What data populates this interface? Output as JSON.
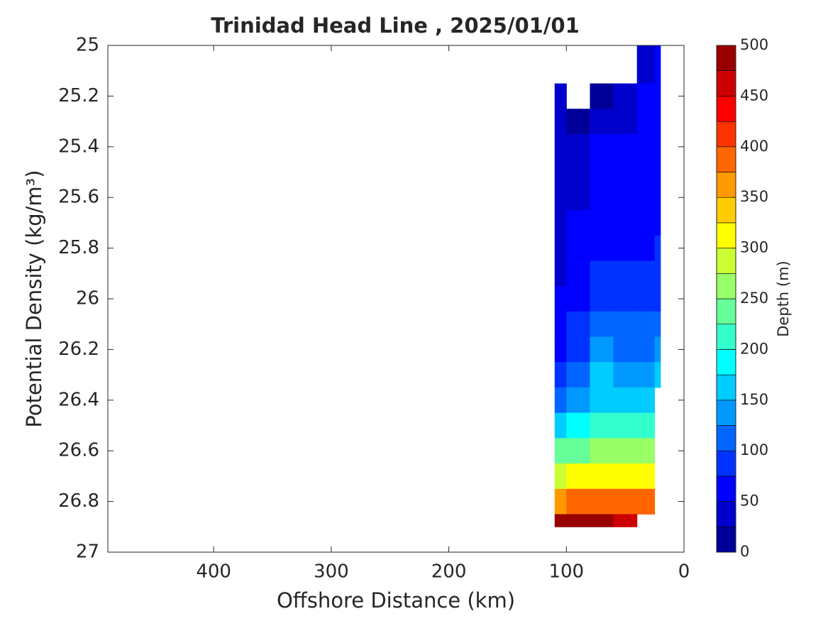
{
  "chart_data": {
    "type": "contourf",
    "title": "Trinidad Head Line , 2025/01/01",
    "xlabel": "Offshore Distance (km)",
    "ylabel": "Potential Density (kg/m³)",
    "colorbar_label": "Depth (m)",
    "xlim": [
      490,
      0
    ],
    "xticks": [
      400,
      300,
      200,
      100,
      0
    ],
    "ylim": [
      25,
      27
    ],
    "yticks": [
      25,
      25.2,
      25.4,
      25.6,
      25.8,
      26,
      26.2,
      26.4,
      26.6,
      26.8,
      27
    ],
    "colormap": "jet",
    "levels": 20,
    "clim": [
      0,
      500
    ],
    "cticks": [
      0,
      50,
      100,
      150,
      200,
      250,
      300,
      350,
      400,
      450,
      500
    ],
    "x": [
      110,
      90,
      70,
      50,
      30,
      20
    ],
    "y": [
      25.0,
      25.1,
      25.2,
      25.3,
      25.4,
      25.5,
      25.6,
      25.7,
      25.8,
      25.9,
      26.0,
      26.1,
      26.2,
      26.3,
      26.4,
      26.5,
      26.6,
      26.7,
      26.8,
      26.9
    ],
    "z": [
      [
        null,
        null,
        null,
        null,
        40,
        50
      ],
      [
        null,
        null,
        null,
        null,
        45,
        52
      ],
      [
        30,
        null,
        20,
        30,
        50,
        55
      ],
      [
        35,
        15,
        30,
        45,
        55,
        58
      ],
      [
        40,
        30,
        50,
        55,
        58,
        60
      ],
      [
        42,
        40,
        55,
        62,
        62,
        63
      ],
      [
        44,
        45,
        60,
        65,
        65,
        66
      ],
      [
        46,
        50,
        63,
        68,
        68,
        70
      ],
      [
        48,
        55,
        68,
        72,
        72,
        76
      ],
      [
        49,
        62,
        78,
        78,
        76,
        82
      ],
      [
        52,
        70,
        90,
        85,
        85,
        95
      ],
      [
        58,
        80,
        105,
        100,
        100,
        110
      ],
      [
        65,
        95,
        125,
        120,
        118,
        125
      ],
      [
        75,
        115,
        150,
        140,
        140,
        150
      ],
      [
        110,
        145,
        172,
        170,
        165,
        null
      ],
      [
        170,
        190,
        210,
        215,
        210,
        null
      ],
      [
        230,
        245,
        250,
        255,
        250,
        null
      ],
      [
        290,
        300,
        310,
        310,
        300,
        null
      ],
      [
        370,
        380,
        390,
        390,
        380,
        null
      ],
      [
        480,
        485,
        490,
        470,
        null,
        null
      ]
    ]
  }
}
